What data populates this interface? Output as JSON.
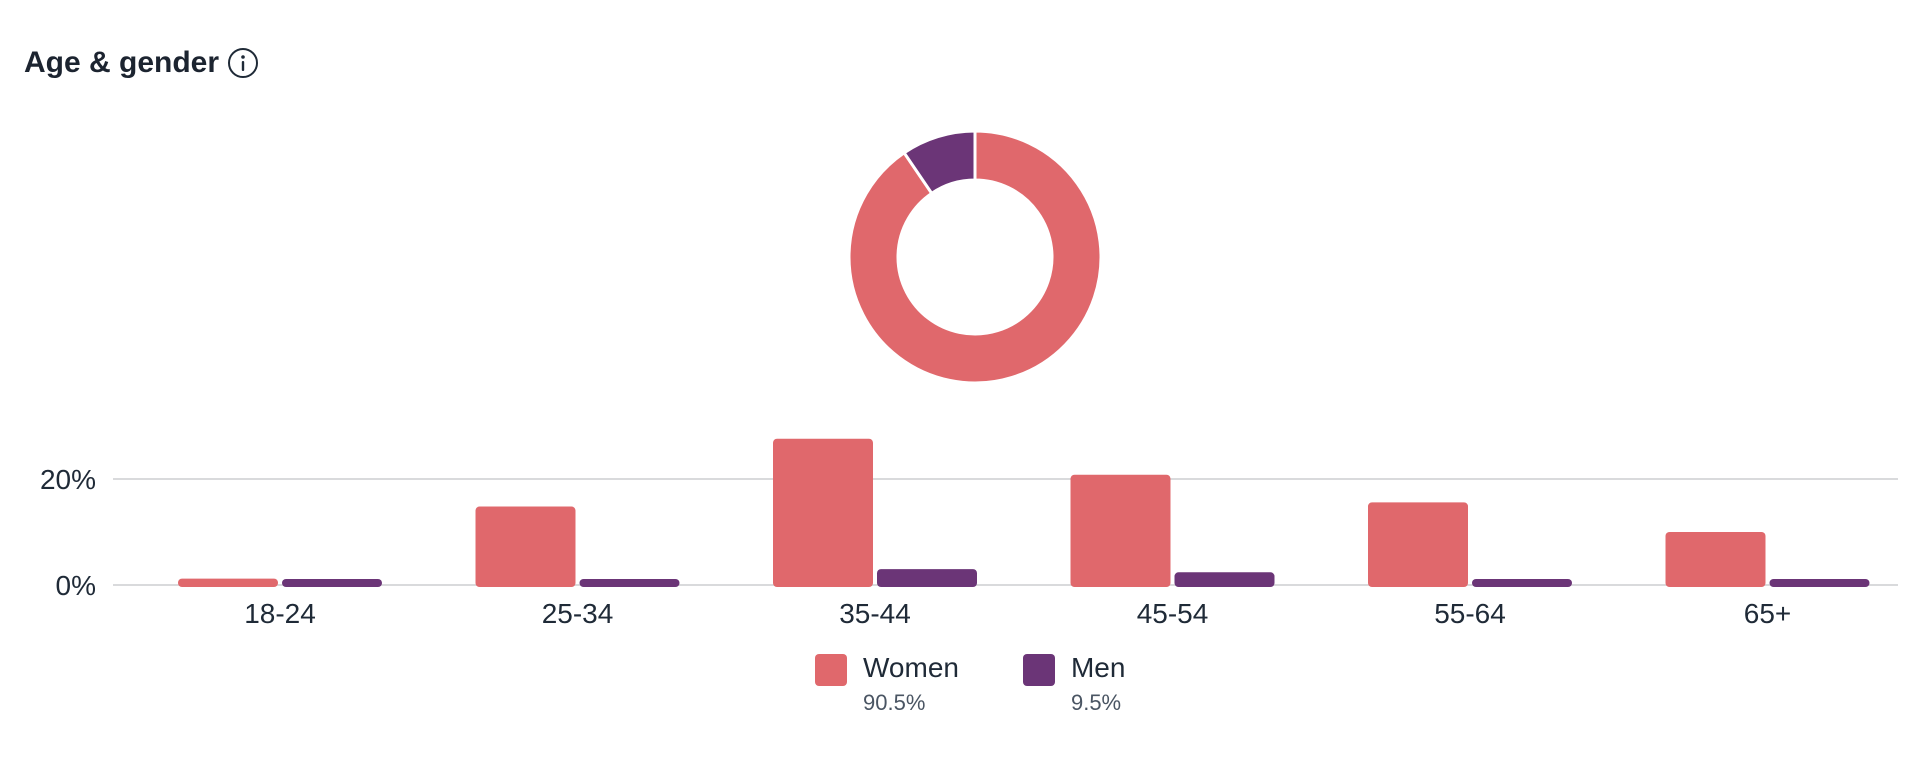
{
  "header": {
    "title": "Age & gender"
  },
  "colors": {
    "women": "#e0686c",
    "men": "#6b3577",
    "grid": "#d9dadc",
    "text": "#1f2a37"
  },
  "chart_data": [
    {
      "type": "pie",
      "variant": "donut",
      "slices": [
        {
          "label": "Women",
          "value": 90.5,
          "color": "#e0686c"
        },
        {
          "label": "Men",
          "value": 9.5,
          "color": "#6b3577"
        }
      ]
    },
    {
      "type": "bar",
      "categories": [
        "18-24",
        "25-34",
        "35-44",
        "45-54",
        "55-64",
        "65+"
      ],
      "series": [
        {
          "name": "Women",
          "values": [
            1.2,
            14.8,
            27.6,
            20.8,
            15.6,
            10.0
          ],
          "color": "#e0686c"
        },
        {
          "name": "Men",
          "values": [
            0.8,
            0.8,
            3.0,
            2.4,
            0.8,
            0.8
          ],
          "color": "#6b3577"
        }
      ],
      "yticks": [
        "0%",
        "20%"
      ],
      "ytick_values": [
        0,
        20
      ],
      "ylim": [
        0,
        28
      ],
      "grid": true,
      "legend_placement": "bottom-center"
    }
  ],
  "legend": [
    {
      "label": "Women",
      "value": "90.5%",
      "color": "#e0686c"
    },
    {
      "label": "Men",
      "value": "9.5%",
      "color": "#6b3577"
    }
  ]
}
